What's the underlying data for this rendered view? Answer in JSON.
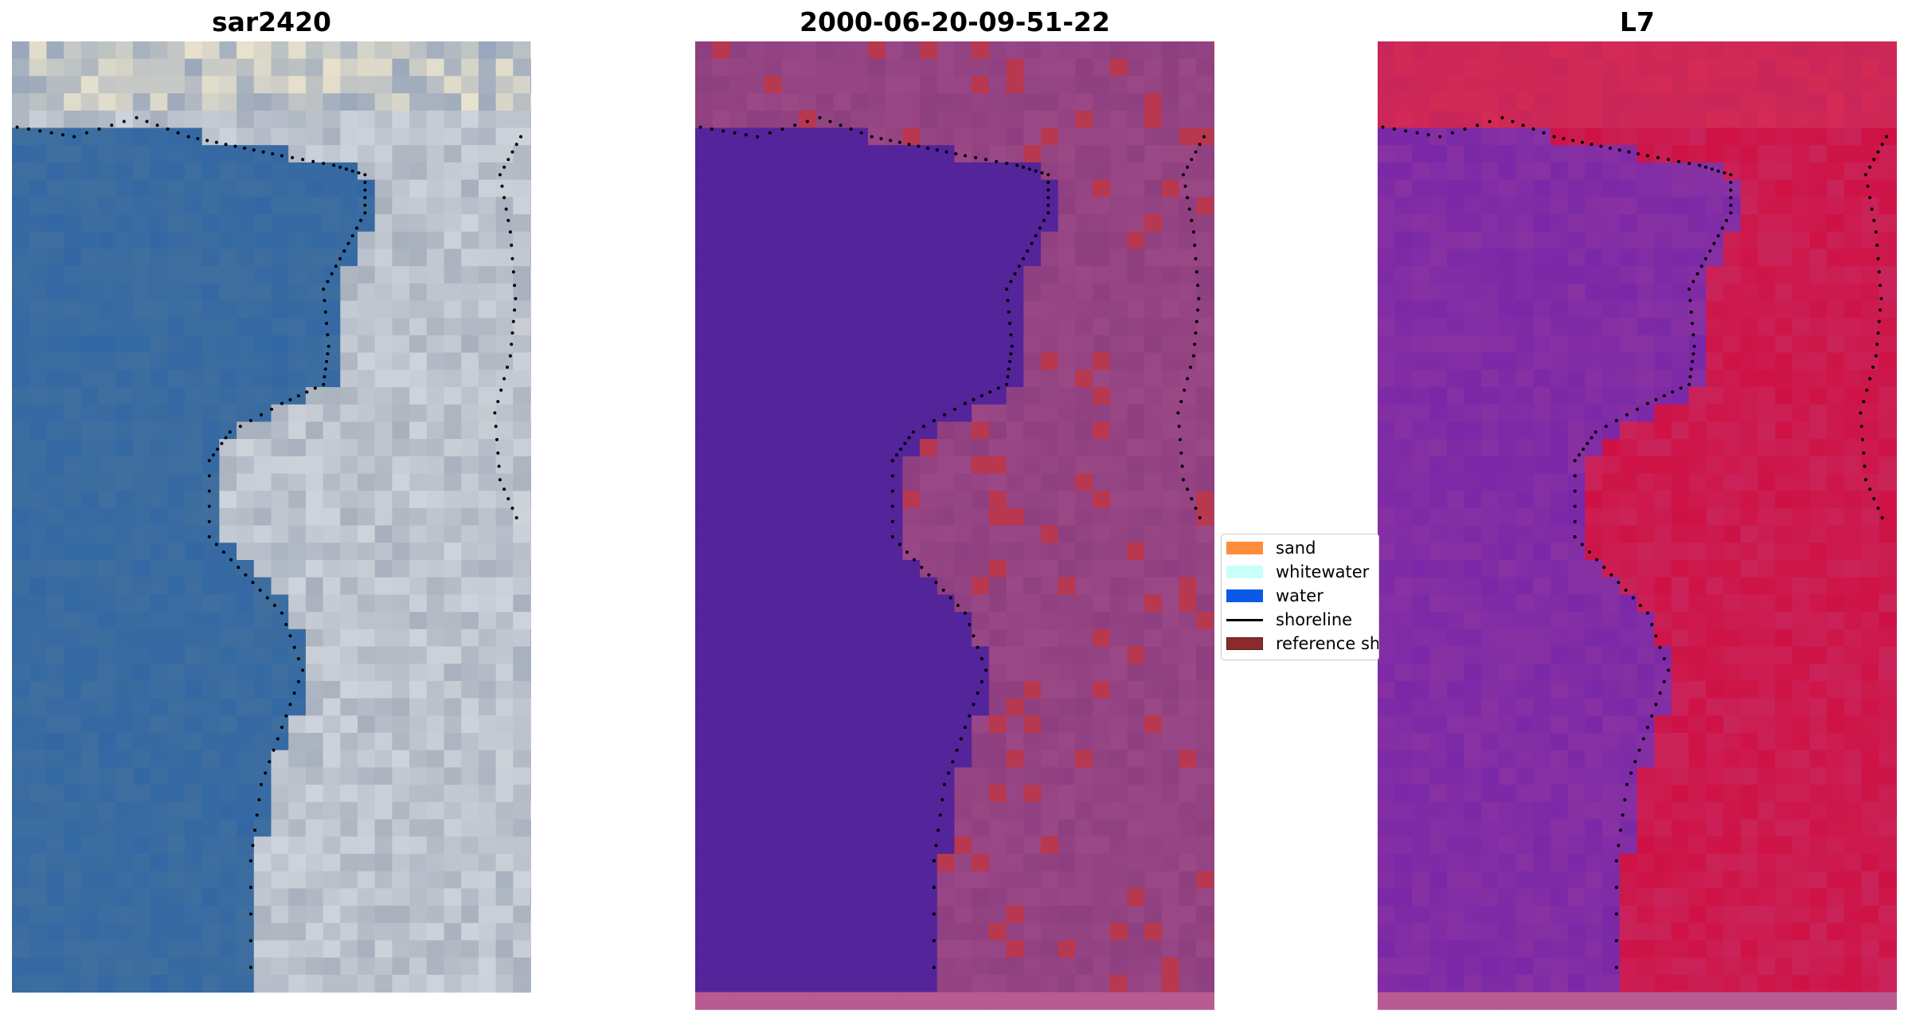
{
  "panels": [
    {
      "title": "sar2420",
      "render": "rgb"
    },
    {
      "title": "2000-06-20-09-51-22",
      "render": "classified"
    },
    {
      "title": "L7",
      "render": "index"
    }
  ],
  "legend": {
    "items": [
      {
        "label": "sand",
        "color": "#ff8c3a",
        "kind": "patch"
      },
      {
        "label": "whitewater",
        "color": "#c8fff8",
        "kind": "patch"
      },
      {
        "label": "water",
        "color": "#0a5ae6",
        "kind": "patch"
      },
      {
        "label": "shoreline",
        "color": "#000000",
        "kind": "line"
      },
      {
        "label": "reference shoreline",
        "color": "#8b2a2a",
        "kind": "patch"
      }
    ]
  },
  "colors": {
    "water_class": "#53249a",
    "land_class": "#8e3f7f",
    "sand_class": "#b8384f",
    "index_low": "#7a28a8",
    "index_high": "#cf1245",
    "rgb_water": "#3f6f9e",
    "rgb_land": "#a8b0bd",
    "shoreline": "#000000"
  }
}
